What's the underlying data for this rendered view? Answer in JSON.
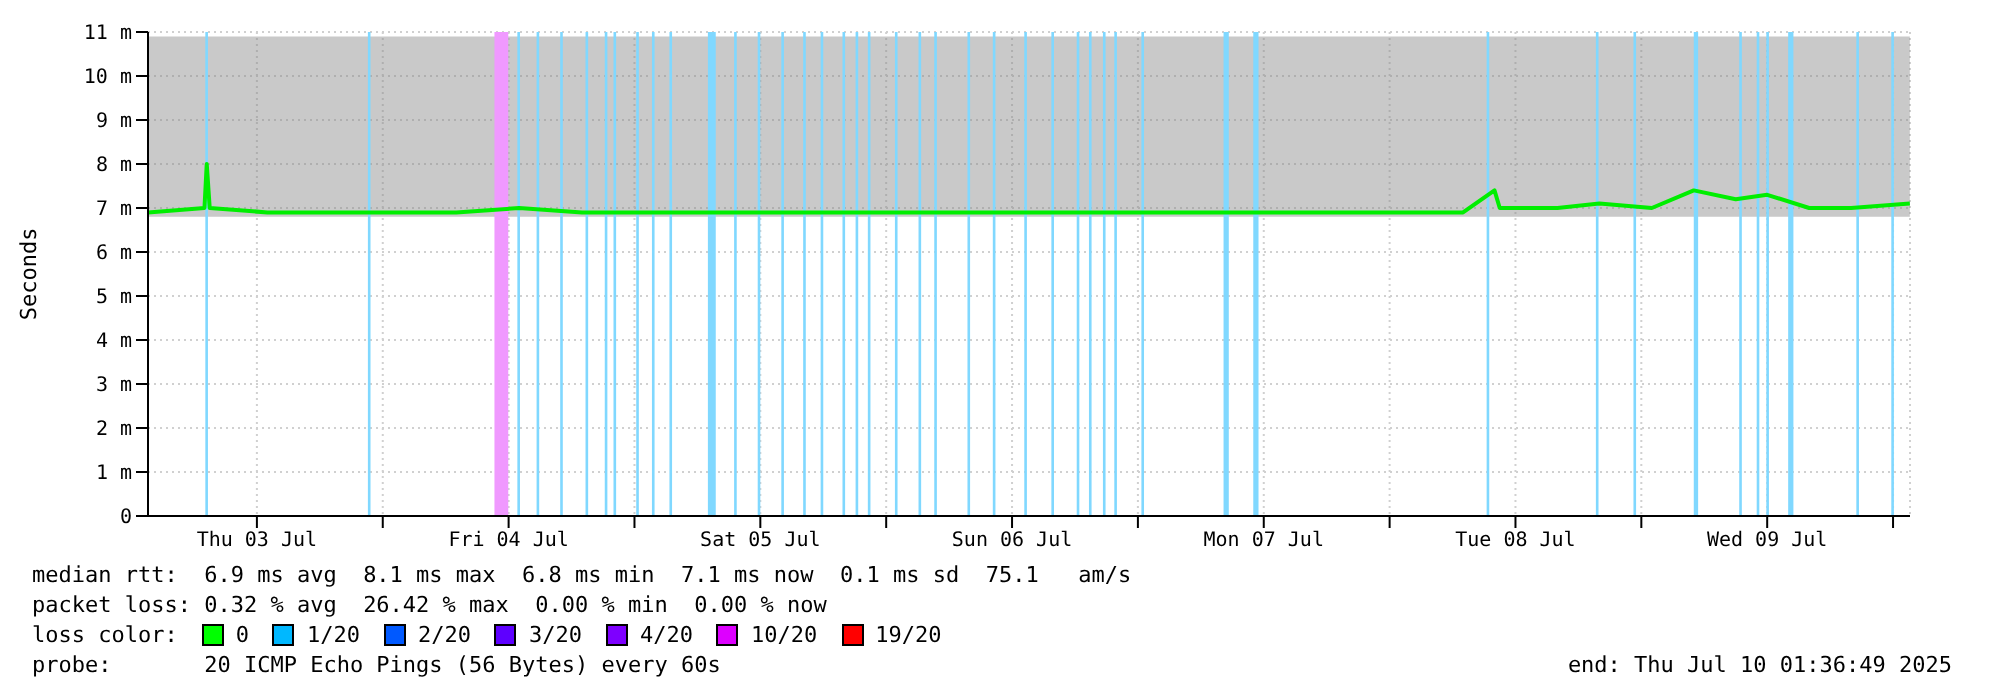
{
  "chart_data": {
    "type": "line",
    "ylabel": "Seconds",
    "x": [
      "2025-07-03T01:37",
      "2025-07-03T07:00",
      "2025-07-03T07:13",
      "2025-07-03T07:30",
      "2025-07-03T13:00",
      "2025-07-03T19:00",
      "2025-07-04T01:00",
      "2025-07-04T07:00",
      "2025-07-04T13:00",
      "2025-07-04T19:00",
      "2025-07-05T01:00",
      "2025-07-05T07:00",
      "2025-07-05T13:00",
      "2025-07-05T19:00",
      "2025-07-06T01:00",
      "2025-07-06T07:00",
      "2025-07-06T13:00",
      "2025-07-06T19:00",
      "2025-07-07T01:00",
      "2025-07-07T07:00",
      "2025-07-07T13:00",
      "2025-07-07T19:00",
      "2025-07-08T01:00",
      "2025-07-08T07:00",
      "2025-07-08T10:00",
      "2025-07-08T10:30",
      "2025-07-08T16:00",
      "2025-07-08T20:00",
      "2025-07-09T01:00",
      "2025-07-09T05:00",
      "2025-07-09T09:00",
      "2025-07-09T12:00",
      "2025-07-09T16:00",
      "2025-07-09T20:00",
      "2025-07-10T01:36"
    ],
    "series": [
      {
        "color": "#00ee00",
        "values": [
          6.9,
          7.0,
          8.0,
          7.0,
          6.9,
          6.9,
          6.9,
          6.9,
          7.0,
          6.9,
          6.9,
          6.9,
          6.9,
          6.9,
          6.9,
          6.9,
          6.9,
          6.9,
          6.9,
          6.9,
          6.9,
          6.9,
          6.9,
          6.9,
          7.4,
          7.0,
          7.0,
          7.1,
          7.0,
          7.4,
          7.2,
          7.3,
          7.0,
          7.0,
          7.1
        ],
        "lower": [
          6.8,
          6.8,
          6.8,
          6.8,
          6.8,
          6.8,
          6.8,
          6.8,
          6.8,
          6.8,
          6.8,
          6.8,
          6.8,
          6.8,
          6.8,
          6.8,
          6.8,
          6.8,
          6.8,
          6.8,
          6.8,
          6.8,
          6.8,
          6.8,
          6.8,
          6.8,
          6.8,
          6.8,
          6.8,
          6.8,
          6.8,
          6.8,
          6.8,
          6.8,
          6.8
        ],
        "upper": [
          10.9,
          10.9,
          10.9,
          10.9,
          10.9,
          10.9,
          10.9,
          10.9,
          10.9,
          10.9,
          10.9,
          10.9,
          10.9,
          10.9,
          10.9,
          10.9,
          10.9,
          10.9,
          10.9,
          10.9,
          10.9,
          10.9,
          10.9,
          10.9,
          10.9,
          10.9,
          10.9,
          10.9,
          10.9,
          10.9,
          10.9,
          10.9,
          10.9,
          10.9,
          10.9
        ]
      }
    ],
    "xlim": [
      "2025-07-03T01:37",
      "2025-07-10T01:37"
    ],
    "xticks": [
      {
        "value": "2025-07-03T12:00",
        "label": "Thu 03 Jul"
      },
      {
        "value": "2025-07-04T00:00",
        "label": null
      },
      {
        "value": "2025-07-04T12:00",
        "label": "Fri 04 Jul"
      },
      {
        "value": "2025-07-05T00:00",
        "label": null
      },
      {
        "value": "2025-07-05T12:00",
        "label": "Sat 05 Jul"
      },
      {
        "value": "2025-07-06T00:00",
        "label": null
      },
      {
        "value": "2025-07-06T12:00",
        "label": "Sun 06 Jul"
      },
      {
        "value": "2025-07-07T00:00",
        "label": null
      },
      {
        "value": "2025-07-07T12:00",
        "label": "Mon 07 Jul"
      },
      {
        "value": "2025-07-08T00:00",
        "label": null
      },
      {
        "value": "2025-07-08T12:00",
        "label": "Tue 08 Jul"
      },
      {
        "value": "2025-07-09T00:00",
        "label": null
      },
      {
        "value": "2025-07-09T12:00",
        "label": "Wed 09 Jul"
      },
      {
        "value": "2025-07-10T00:00",
        "label": null
      }
    ],
    "ylim": [
      0,
      11
    ],
    "yticks": [
      0,
      {
        "value": 1,
        "label": "1 m"
      },
      {
        "value": 2,
        "label": "2 m"
      },
      {
        "value": 3,
        "label": "3 m"
      },
      {
        "value": 4,
        "label": "4 m"
      },
      {
        "value": 5,
        "label": "5 m"
      },
      {
        "value": 6,
        "label": "6 m"
      },
      {
        "value": 7,
        "label": "7 m"
      },
      {
        "value": 8,
        "label": "8 m"
      },
      {
        "value": 9,
        "label": "9 m"
      },
      {
        "value": 10,
        "label": "10 m"
      },
      {
        "value": 11,
        "label": "11 m"
      }
    ],
    "grid": true,
    "legend": false,
    "marker": "none",
    "line_style": "solid",
    "bands": [
      {
        "axis": "x",
        "from": "2025-07-03T07:05",
        "to": "2025-07-03T07:20",
        "color": "#80d8ff"
      },
      {
        "axis": "x",
        "from": "2025-07-03T22:35",
        "to": "2025-07-03T22:50",
        "color": "#80d8ff"
      },
      {
        "axis": "x",
        "from": "2025-07-04T10:39",
        "to": "2025-07-04T11:58",
        "color": "#f099ff"
      },
      {
        "axis": "x",
        "from": "2025-07-04T12:50",
        "to": "2025-07-04T13:05",
        "color": "#80d8ff"
      },
      {
        "axis": "x",
        "from": "2025-07-04T14:40",
        "to": "2025-07-04T14:55",
        "color": "#80d8ff"
      },
      {
        "axis": "x",
        "from": "2025-07-04T16:55",
        "to": "2025-07-04T17:10",
        "color": "#80d8ff"
      },
      {
        "axis": "x",
        "from": "2025-07-04T19:20",
        "to": "2025-07-04T19:35",
        "color": "#80d8ff"
      },
      {
        "axis": "x",
        "from": "2025-07-04T21:10",
        "to": "2025-07-04T21:25",
        "color": "#80d8ff"
      },
      {
        "axis": "x",
        "from": "2025-07-04T22:00",
        "to": "2025-07-04T22:15",
        "color": "#80d8ff"
      },
      {
        "axis": "x",
        "from": "2025-07-05T00:10",
        "to": "2025-07-05T00:25",
        "color": "#80d8ff"
      },
      {
        "axis": "x",
        "from": "2025-07-05T01:40",
        "to": "2025-07-05T01:55",
        "color": "#80d8ff"
      },
      {
        "axis": "x",
        "from": "2025-07-05T03:20",
        "to": "2025-07-05T03:35",
        "color": "#80d8ff"
      },
      {
        "axis": "x",
        "from": "2025-07-05T07:00",
        "to": "2025-07-05T07:45",
        "color": "#80d8ff"
      },
      {
        "axis": "x",
        "from": "2025-07-05T09:30",
        "to": "2025-07-05T09:45",
        "color": "#80d8ff"
      },
      {
        "axis": "x",
        "from": "2025-07-05T11:45",
        "to": "2025-07-05T12:00",
        "color": "#80d8ff"
      },
      {
        "axis": "x",
        "from": "2025-07-05T14:00",
        "to": "2025-07-05T14:15",
        "color": "#80d8ff"
      },
      {
        "axis": "x",
        "from": "2025-07-05T16:05",
        "to": "2025-07-05T16:20",
        "color": "#80d8ff"
      },
      {
        "axis": "x",
        "from": "2025-07-05T17:45",
        "to": "2025-07-05T18:00",
        "color": "#80d8ff"
      },
      {
        "axis": "x",
        "from": "2025-07-05T19:50",
        "to": "2025-07-05T20:05",
        "color": "#80d8ff"
      },
      {
        "axis": "x",
        "from": "2025-07-05T21:05",
        "to": "2025-07-05T21:20",
        "color": "#80d8ff"
      },
      {
        "axis": "x",
        "from": "2025-07-05T22:15",
        "to": "2025-07-05T22:30",
        "color": "#80d8ff"
      },
      {
        "axis": "x",
        "from": "2025-07-06T00:50",
        "to": "2025-07-06T01:05",
        "color": "#80d8ff"
      },
      {
        "axis": "x",
        "from": "2025-07-06T03:05",
        "to": "2025-07-06T03:20",
        "color": "#80d8ff"
      },
      {
        "axis": "x",
        "from": "2025-07-06T04:35",
        "to": "2025-07-06T04:50",
        "color": "#80d8ff"
      },
      {
        "axis": "x",
        "from": "2025-07-06T07:45",
        "to": "2025-07-06T08:00",
        "color": "#80d8ff"
      },
      {
        "axis": "x",
        "from": "2025-07-06T10:10",
        "to": "2025-07-06T10:25",
        "color": "#80d8ff"
      },
      {
        "axis": "x",
        "from": "2025-07-06T13:10",
        "to": "2025-07-06T13:25",
        "color": "#80d8ff"
      },
      {
        "axis": "x",
        "from": "2025-07-06T15:45",
        "to": "2025-07-06T16:00",
        "color": "#80d8ff"
      },
      {
        "axis": "x",
        "from": "2025-07-06T18:10",
        "to": "2025-07-06T18:25",
        "color": "#80d8ff"
      },
      {
        "axis": "x",
        "from": "2025-07-06T19:20",
        "to": "2025-07-06T19:35",
        "color": "#80d8ff"
      },
      {
        "axis": "x",
        "from": "2025-07-06T20:40",
        "to": "2025-07-06T20:55",
        "color": "#80d8ff"
      },
      {
        "axis": "x",
        "from": "2025-07-06T21:45",
        "to": "2025-07-06T22:00",
        "color": "#80d8ff"
      },
      {
        "axis": "x",
        "from": "2025-07-07T00:20",
        "to": "2025-07-07T00:35",
        "color": "#80d8ff"
      },
      {
        "axis": "x",
        "from": "2025-07-07T08:10",
        "to": "2025-07-07T08:40",
        "color": "#80d8ff"
      },
      {
        "axis": "x",
        "from": "2025-07-07T11:00",
        "to": "2025-07-07T11:30",
        "color": "#80d8ff"
      },
      {
        "axis": "x",
        "from": "2025-07-08T09:15",
        "to": "2025-07-08T09:30",
        "color": "#80d8ff"
      },
      {
        "axis": "x",
        "from": "2025-07-08T19:40",
        "to": "2025-07-08T19:55",
        "color": "#80d8ff"
      },
      {
        "axis": "x",
        "from": "2025-07-08T23:15",
        "to": "2025-07-08T23:30",
        "color": "#80d8ff"
      },
      {
        "axis": "x",
        "from": "2025-07-09T05:00",
        "to": "2025-07-09T05:25",
        "color": "#80d8ff"
      },
      {
        "axis": "x",
        "from": "2025-07-09T09:20",
        "to": "2025-07-09T09:35",
        "color": "#80d8ff"
      },
      {
        "axis": "x",
        "from": "2025-07-09T11:00",
        "to": "2025-07-09T11:15",
        "color": "#80d8ff"
      },
      {
        "axis": "x",
        "from": "2025-07-09T11:55",
        "to": "2025-07-09T12:10",
        "color": "#80d8ff"
      },
      {
        "axis": "x",
        "from": "2025-07-09T14:00",
        "to": "2025-07-09T14:30",
        "color": "#80d8ff"
      },
      {
        "axis": "x",
        "from": "2025-07-09T20:30",
        "to": "2025-07-09T20:45",
        "color": "#80d8ff"
      },
      {
        "axis": "x",
        "from": "2025-07-09T23:50",
        "to": "2025-07-10T00:05",
        "color": "#80d8ff"
      }
    ],
    "annotations": [
      "median rtt:  6.9 ms avg  8.1 ms max  6.8 ms min  7.1 ms now  0.1 ms sd  75.1   am/s",
      "packet loss: 0.32 % avg  26.42 % max  0.00 % min  0.00 % now",
      "loss color:",
      "0",
      "1/20",
      "2/20",
      "3/20",
      "4/20",
      "10/20",
      "19/20",
      "probe:       20 ICMP Echo Pings (56 Bytes) every 60s",
      "end: Thu Jul 10 01:36:49 2025"
    ]
  }
}
